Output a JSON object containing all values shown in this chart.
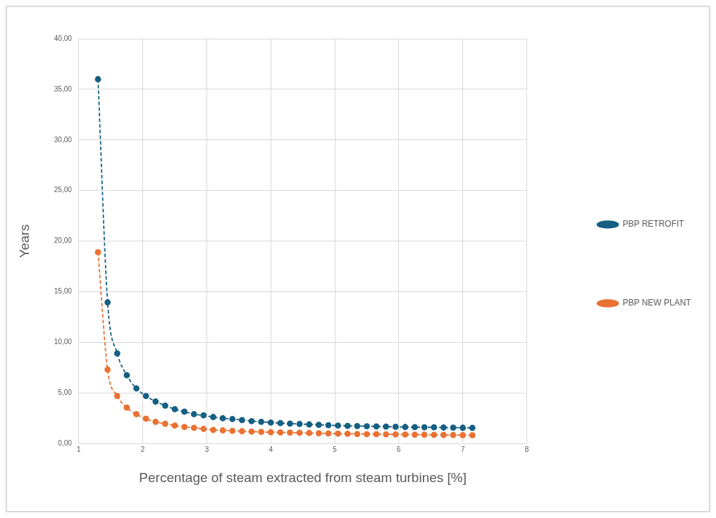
{
  "chart_data": {
    "type": "line",
    "xlabel": "Percentage of steam extracted from steam turbines [%]",
    "ylabel": "Years",
    "x": [
      1.3,
      1.45,
      1.6,
      1.75,
      1.9,
      2.05,
      2.2,
      2.35,
      2.5,
      2.65,
      2.8,
      2.95,
      3.1,
      3.25,
      3.4,
      3.55,
      3.7,
      3.85,
      4.0,
      4.15,
      4.3,
      4.45,
      4.6,
      4.75,
      4.9,
      5.05,
      5.2,
      5.35,
      5.5,
      5.65,
      5.8,
      5.95,
      6.1,
      6.25,
      6.4,
      6.55,
      6.7,
      6.85,
      7.0,
      7.15
    ],
    "series": [
      {
        "name": "PBP RETROFIT",
        "color": "#155f82",
        "values": [
          36,
          13.95,
          8.9,
          6.75,
          5.45,
          4.7,
          4.15,
          3.75,
          3.4,
          3.15,
          2.9,
          2.78,
          2.62,
          2.5,
          2.42,
          2.32,
          2.22,
          2.15,
          2.08,
          2.02,
          1.97,
          1.93,
          1.89,
          1.85,
          1.81,
          1.78,
          1.75,
          1.73,
          1.71,
          1.69,
          1.67,
          1.65,
          1.63,
          1.62,
          1.61,
          1.6,
          1.58,
          1.57,
          1.56,
          1.55
        ]
      },
      {
        "name": "PBP NEW PLANT",
        "color": "#e97132",
        "values": [
          18.9,
          7.3,
          4.7,
          3.55,
          2.9,
          2.45,
          2.15,
          1.95,
          1.78,
          1.64,
          1.55,
          1.45,
          1.35,
          1.3,
          1.26,
          1.22,
          1.18,
          1.15,
          1.12,
          1.1,
          1.08,
          1.06,
          1.04,
          1.02,
          1.0,
          0.98,
          0.96,
          0.95,
          0.93,
          0.92,
          0.91,
          0.9,
          0.89,
          0.88,
          0.87,
          0.86,
          0.85,
          0.84,
          0.83,
          0.82
        ]
      }
    ],
    "xlim": [
      1,
      8
    ],
    "xticks": [
      1,
      2,
      3,
      4,
      5,
      6,
      7,
      8
    ],
    "ylim": [
      0,
      40
    ],
    "yticks": [
      {
        "value": 0,
        "label": "0,00"
      },
      {
        "value": 5,
        "label": "5,00"
      },
      {
        "value": 10,
        "label": "10,00"
      },
      {
        "value": 15,
        "label": "15,00"
      },
      {
        "value": 20,
        "label": "20,00"
      },
      {
        "value": 25,
        "label": "25,00"
      },
      {
        "value": 30,
        "label": "30,00"
      },
      {
        "value": 35,
        "label": "35,00"
      },
      {
        "value": 40,
        "label": "40,00"
      }
    ],
    "grid": true,
    "legend": "right",
    "marker": "circle",
    "line_style": "dashed"
  }
}
